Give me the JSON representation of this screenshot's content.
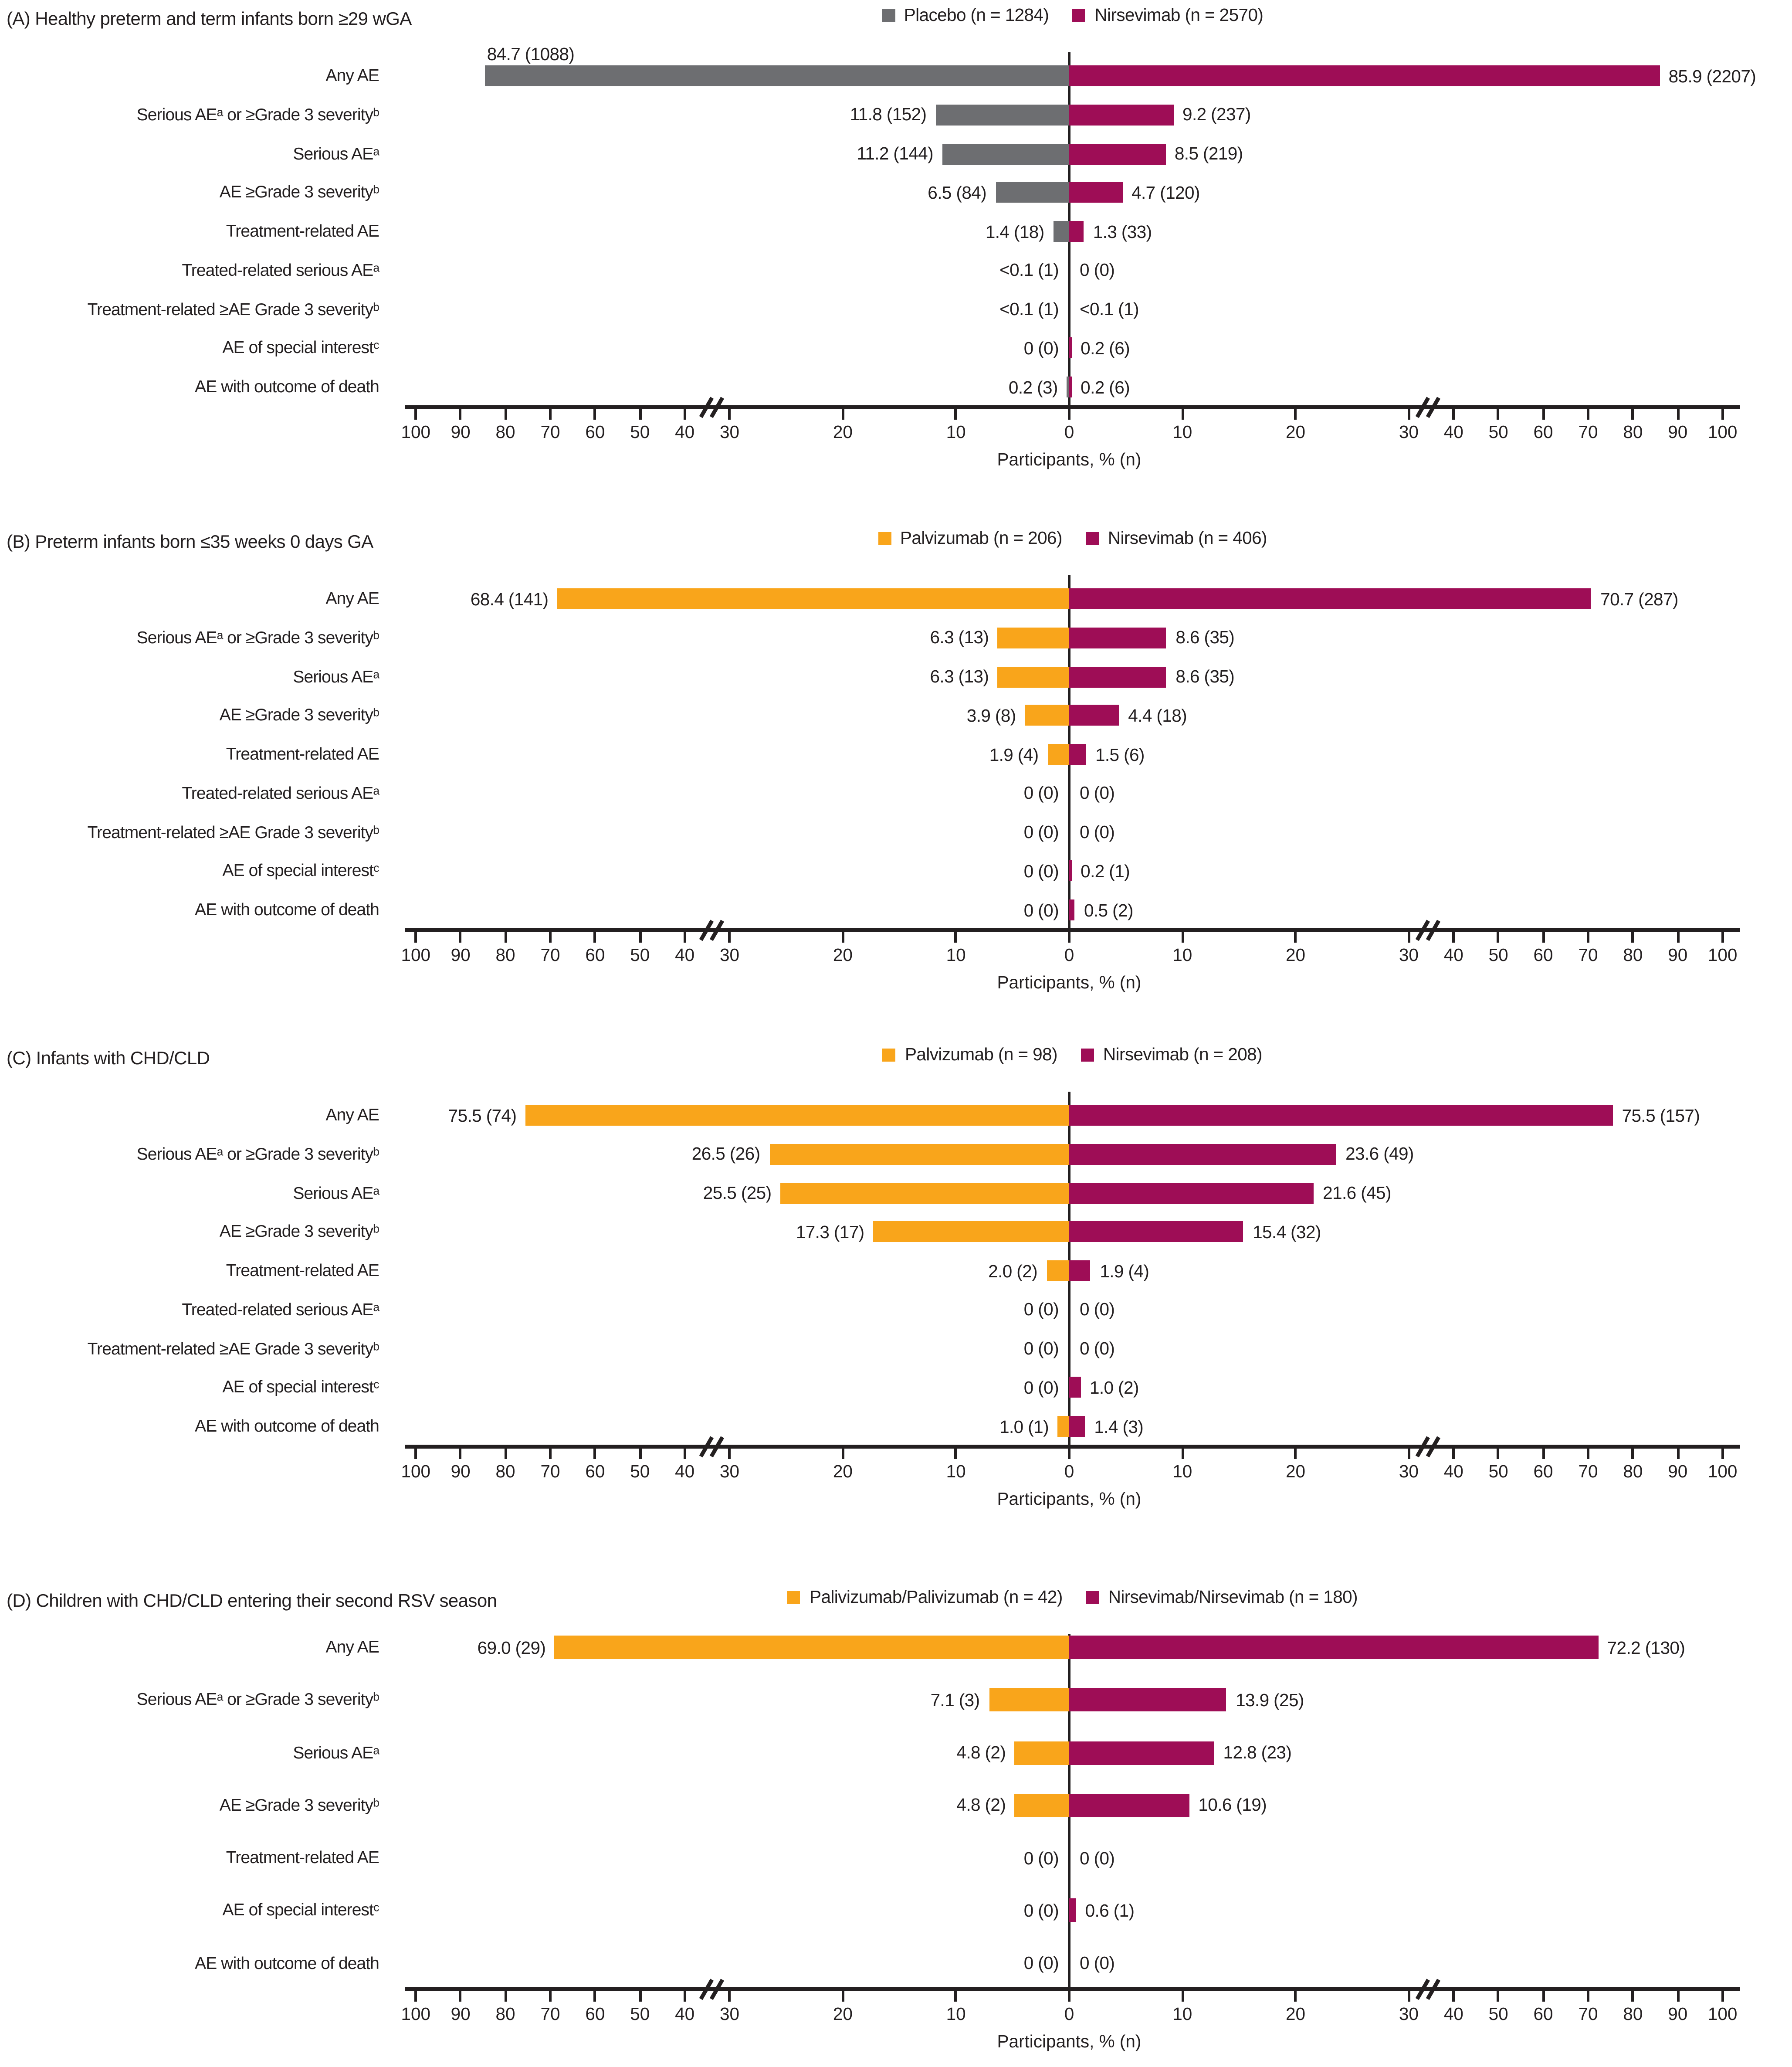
{
  "figure": {
    "axis_label": "Participants, % (n)",
    "tick_labels": [
      "0",
      "10",
      "20",
      "30",
      "40",
      "50",
      "60",
      "70",
      "80",
      "90",
      "100"
    ],
    "tick_values": [
      0,
      10,
      20,
      30,
      40,
      50,
      60,
      70,
      80,
      90,
      100
    ],
    "axis_break_between": [
      30,
      40
    ],
    "colors": {
      "placebo_gray": "#6D6E71",
      "palivizumab_orange": "#F9A51B",
      "nirsevimab_magenta": "#9E0D56",
      "axis_black": "#231F20"
    }
  },
  "chart_data": [
    {
      "type": "bar",
      "variant": "diverging-horizontal",
      "panel": "A",
      "title": "(A) Healthy preterm and term infants born ≥29 wGA",
      "xlabel": "Participants, % (n)",
      "axis_ticks": [
        0,
        10,
        20,
        30,
        40,
        50,
        60,
        70,
        80,
        90,
        100
      ],
      "axis_break_between": [
        30,
        40
      ],
      "categories": [
        "Any AE",
        "Serious AEᵃ or ≥Grade 3 severityᵇ",
        "Serious AEᵃ",
        "AE ≥Grade 3 severityᵇ",
        "Treatment-related AE",
        "Treated-related serious AEᵃ",
        "Treatment-related ≥AE Grade 3 severityᵇ",
        "AE of special interestᶜ",
        "AE with outcome of death"
      ],
      "series": [
        {
          "name": "Placebo (n = 1284)",
          "side": "left",
          "color": "#6D6E71",
          "values": [
            84.7,
            11.8,
            11.2,
            6.5,
            1.4,
            0.05,
            0.05,
            0,
            0.2
          ],
          "labels": [
            "84.7 (1088)",
            "11.8 (152)",
            "11.2 (144)",
            "6.5 (84)",
            "1.4 (18)",
            "<0.1 (1)",
            "<0.1 (1)",
            "0 (0)",
            "0.2 (3)"
          ]
        },
        {
          "name": "Nirsevimab (n = 2570)",
          "side": "right",
          "color": "#9E0D56",
          "values": [
            85.9,
            9.2,
            8.5,
            4.7,
            1.3,
            0,
            0.05,
            0.2,
            0.2
          ],
          "labels": [
            "85.9 (2207)",
            "9.2 (237)",
            "8.5 (219)",
            "4.7 (120)",
            "1.3 (33)",
            "0 (0)",
            "<0.1 (1)",
            "0.2 (6)",
            "0.2 (6)"
          ]
        }
      ]
    },
    {
      "type": "bar",
      "variant": "diverging-horizontal",
      "panel": "B",
      "title": "(B) Preterm infants born ≤35 weeks 0 days GA",
      "xlabel": "Participants, % (n)",
      "axis_ticks": [
        0,
        10,
        20,
        30,
        40,
        50,
        60,
        70,
        80,
        90,
        100
      ],
      "axis_break_between": [
        30,
        40
      ],
      "categories": [
        "Any AE",
        "Serious AEᵃ or ≥Grade 3 severityᵇ",
        "Serious AEᵃ",
        "AE ≥Grade 3 severityᵇ",
        "Treatment-related AE",
        "Treated-related serious AEᵃ",
        "Treatment-related ≥AE Grade 3 severityᵇ",
        "AE of special interestᶜ",
        "AE with outcome of death"
      ],
      "series": [
        {
          "name": "Palvizumab (n = 206)",
          "side": "left",
          "color": "#F9A51B",
          "values": [
            68.4,
            6.3,
            6.3,
            3.9,
            1.9,
            0,
            0,
            0,
            0
          ],
          "labels": [
            "68.4 (141)",
            "6.3 (13)",
            "6.3 (13)",
            "3.9 (8)",
            "1.9 (4)",
            "0 (0)",
            "0 (0)",
            "0 (0)",
            "0 (0)"
          ]
        },
        {
          "name": "Nirsevimab (n = 406)",
          "side": "right",
          "color": "#9E0D56",
          "values": [
            70.7,
            8.6,
            8.6,
            4.4,
            1.5,
            0,
            0,
            0.2,
            0.5
          ],
          "labels": [
            "70.7 (287)",
            "8.6 (35)",
            "8.6 (35)",
            "4.4 (18)",
            "1.5 (6)",
            "0 (0)",
            "0 (0)",
            "0.2 (1)",
            "0.5 (2)"
          ]
        }
      ]
    },
    {
      "type": "bar",
      "variant": "diverging-horizontal",
      "panel": "C",
      "title": "(C) Infants with CHD/CLD",
      "xlabel": "Participants, % (n)",
      "axis_ticks": [
        0,
        10,
        20,
        30,
        40,
        50,
        60,
        70,
        80,
        90,
        100
      ],
      "axis_break_between": [
        30,
        40
      ],
      "categories": [
        "Any AE",
        "Serious AEᵃ or ≥Grade 3 severityᵇ",
        "Serious AEᵃ",
        "AE ≥Grade 3 severityᵇ",
        "Treatment-related AE",
        "Treated-related serious AEᵃ",
        "Treatment-related ≥AE Grade 3 severityᵇ",
        "AE of special interestᶜ",
        "AE with outcome of death"
      ],
      "series": [
        {
          "name": "Palvizumab (n = 98)",
          "side": "left",
          "color": "#F9A51B",
          "values": [
            75.5,
            26.5,
            25.5,
            17.3,
            2.0,
            0,
            0,
            0,
            1.0
          ],
          "labels": [
            "75.5 (74)",
            "26.5 (26)",
            "25.5 (25)",
            "17.3 (17)",
            "2.0 (2)",
            "0 (0)",
            "0 (0)",
            "0 (0)",
            "1.0 (1)"
          ]
        },
        {
          "name": "Nirsevimab (n = 208)",
          "side": "right",
          "color": "#9E0D56",
          "values": [
            75.5,
            23.6,
            21.6,
            15.4,
            1.9,
            0,
            0,
            1.0,
            1.4
          ],
          "labels": [
            "75.5 (157)",
            "23.6 (49)",
            "21.6 (45)",
            "15.4 (32)",
            "1.9 (4)",
            "0 (0)",
            "0 (0)",
            "1.0 (2)",
            "1.4 (3)"
          ]
        }
      ]
    },
    {
      "type": "bar",
      "variant": "diverging-horizontal",
      "panel": "D",
      "title": "(D) Children with CHD/CLD entering their second RSV season",
      "xlabel": "Participants, % (n)",
      "axis_ticks": [
        0,
        10,
        20,
        30,
        40,
        50,
        60,
        70,
        80,
        90,
        100
      ],
      "axis_break_between": [
        30,
        40
      ],
      "categories": [
        "Any AE",
        "Serious AEᵃ or ≥Grade 3 severityᵇ",
        "Serious AEᵃ",
        "AE ≥Grade 3 severityᵇ",
        "Treatment-related AE",
        "AE of special interestᶜ",
        "AE with outcome of death"
      ],
      "series": [
        {
          "name": "Palivizumab/Palivizumab (n = 42)",
          "side": "left",
          "color": "#F9A51B",
          "values": [
            69.0,
            7.1,
            4.8,
            4.8,
            0,
            0,
            0
          ],
          "labels": [
            "69.0 (29)",
            "7.1 (3)",
            "4.8 (2)",
            "4.8 (2)",
            "0 (0)",
            "0 (0)",
            "0 (0)"
          ]
        },
        {
          "name": "Nirsevimab/Nirsevimab (n = 180)",
          "side": "right",
          "color": "#9E0D56",
          "values": [
            72.2,
            13.9,
            12.8,
            10.6,
            0,
            0.6,
            0
          ],
          "labels": [
            "72.2 (130)",
            "13.9 (25)",
            "12.8 (23)",
            "10.6 (19)",
            "0 (0)",
            "0.6 (1)",
            "0 (0)"
          ]
        }
      ]
    }
  ]
}
